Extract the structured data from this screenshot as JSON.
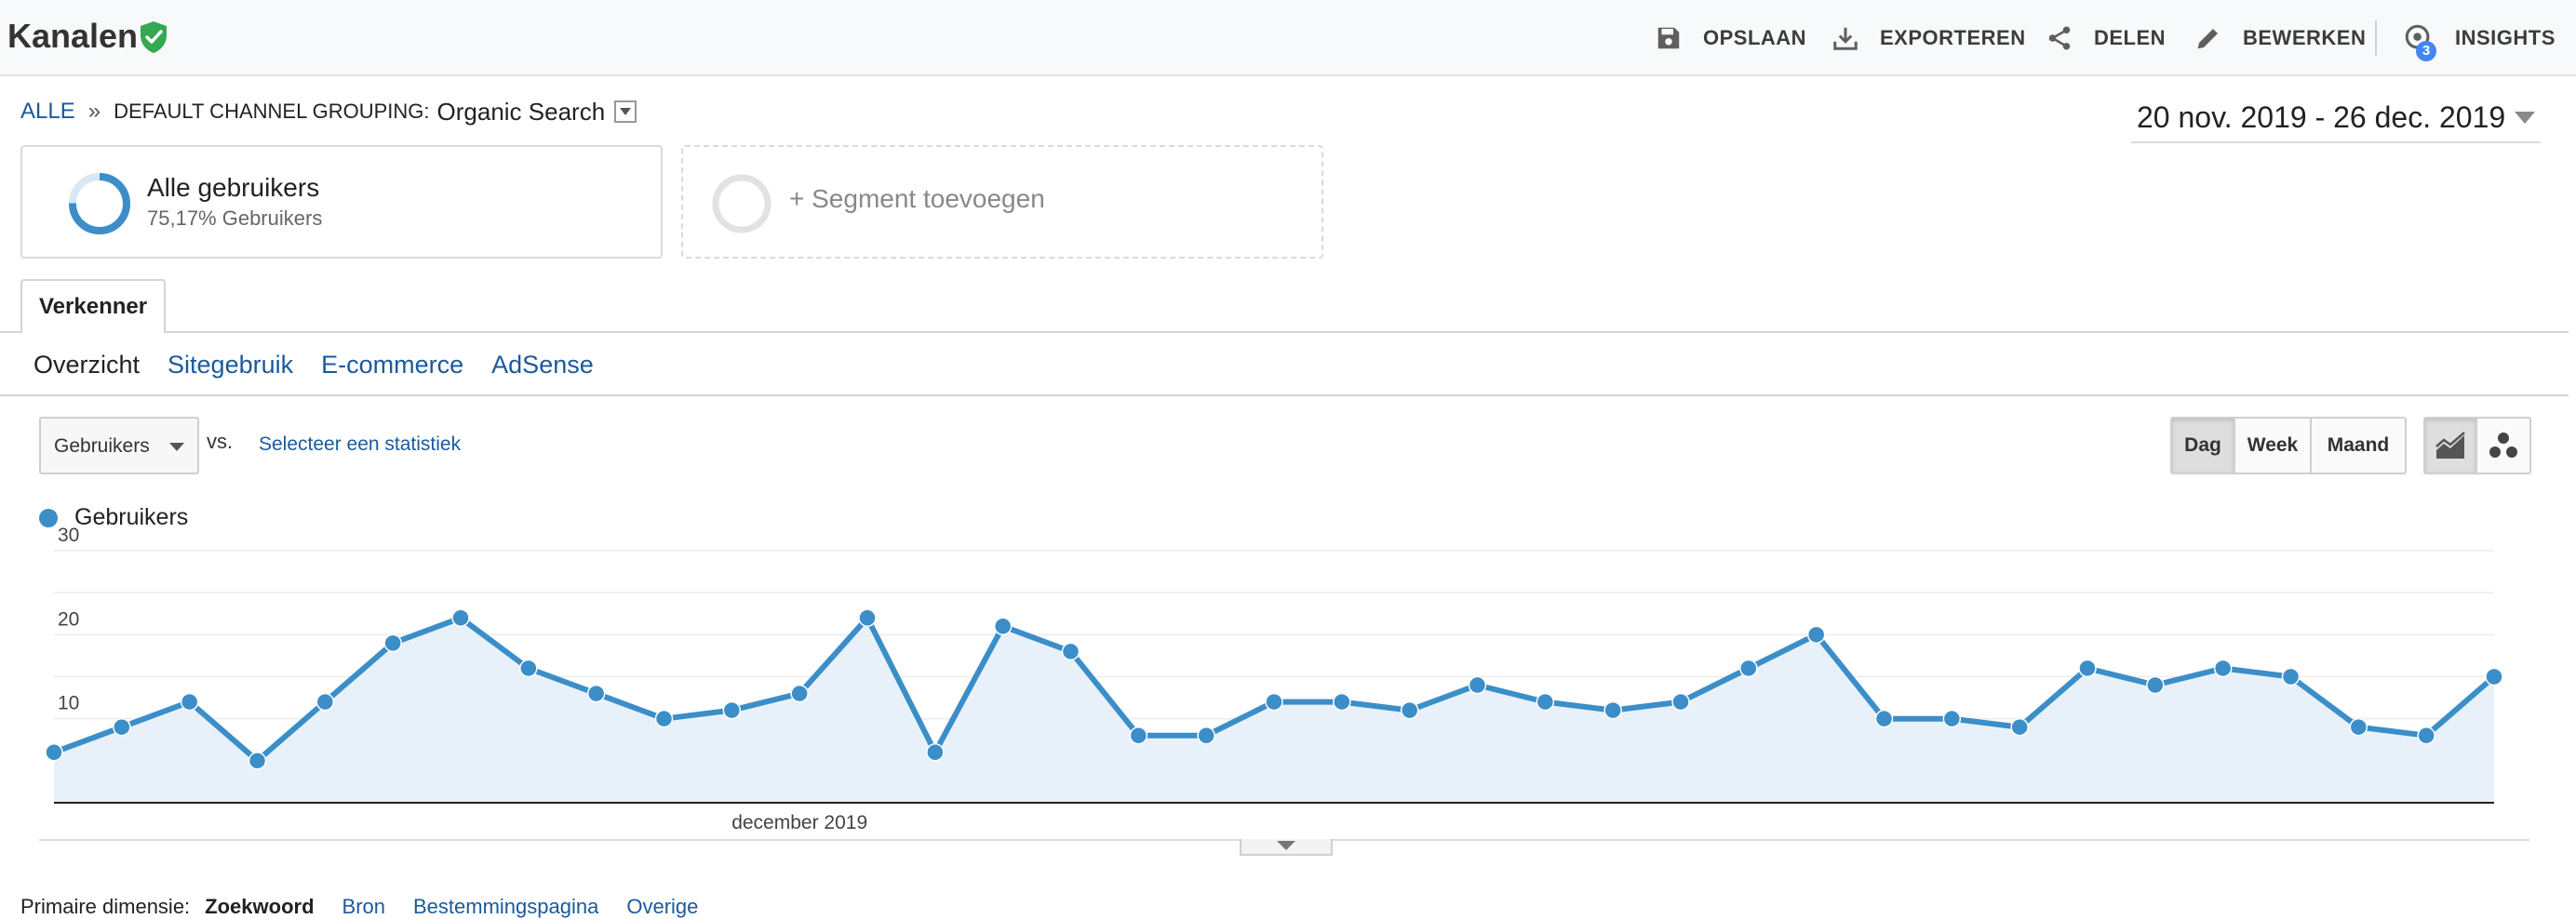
{
  "header": {
    "title": "Kanalen",
    "toolbar": {
      "save": "OPSLAAN",
      "export": "EXPORTEREN",
      "share": "DELEN",
      "edit": "BEWERKEN",
      "insights": "INSIGHTS",
      "insights_badge": "3"
    }
  },
  "breadcrumb": {
    "root": "ALLE",
    "separator": "»",
    "grouping_label": "DEFAULT CHANNEL GROUPING:",
    "grouping_value": "Organic Search"
  },
  "date_range": "20 nov. 2019 - 26 dec. 2019",
  "segments": {
    "active": {
      "name": "Alle gebruikers",
      "subtitle": "75,17% Gebruikers",
      "share": 0.7517
    },
    "add_label": "+ Segment toevoegen"
  },
  "tabs": {
    "explorer": "Verkenner",
    "subtabs": [
      "Overzicht",
      "Sitegebruik",
      "E-commerce",
      "AdSense"
    ]
  },
  "controls": {
    "metric": "Gebruikers",
    "vs": "vs.",
    "compare_link": "Selecteer een statistiek",
    "periods": [
      "Dag",
      "Week",
      "Maand"
    ]
  },
  "colors": {
    "series": "#3b8ec8",
    "area_fill": "#e8f1fa",
    "link": "#1a5a9c",
    "verified": "#34a853",
    "badge": "#4285f4"
  },
  "chart_data": {
    "type": "line",
    "legend": [
      "Gebruikers"
    ],
    "x_label": "december 2019",
    "x_start": "2019-11-20",
    "x_end": "2019-12-26",
    "ylim": [
      0,
      30
    ],
    "y_ticks": [
      "30",
      "20",
      "10"
    ],
    "series": [
      {
        "name": "Gebruikers",
        "values": [
          6,
          9,
          12,
          5,
          12,
          19,
          22,
          16,
          13,
          10,
          11,
          13,
          22,
          6,
          21,
          18,
          8,
          8,
          12,
          12,
          11,
          14,
          12,
          11,
          12,
          16,
          20,
          10,
          10,
          9,
          16,
          14,
          16,
          15,
          9,
          8,
          15
        ]
      }
    ]
  },
  "primary_dimension": {
    "label": "Primaire dimensie:",
    "active": "Zoekwoord",
    "options": [
      "Bron",
      "Bestemmingspagina",
      "Overige"
    ]
  }
}
